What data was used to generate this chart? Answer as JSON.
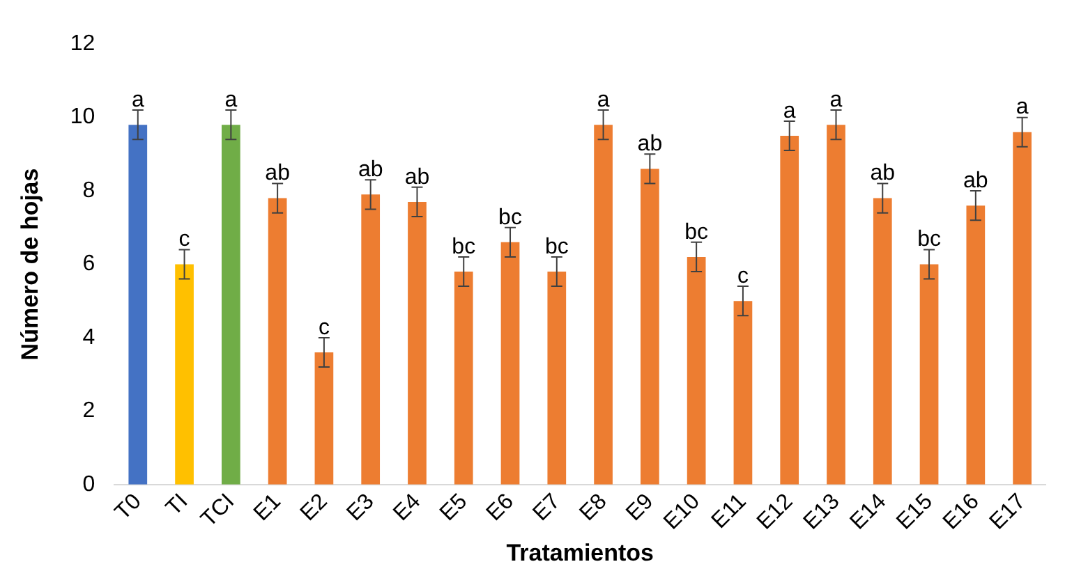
{
  "chart_data": {
    "type": "bar",
    "xlabel": "Tratamientos",
    "ylabel": "Número de hojas",
    "categories": [
      "T0",
      "TI",
      "TCI",
      "E1",
      "E2",
      "E3",
      "E4",
      "E5",
      "E6",
      "E7",
      "E8",
      "E9",
      "E10",
      "E11",
      "E12",
      "E13",
      "E14",
      "E15",
      "E16",
      "E17"
    ],
    "values": [
      9.8,
      6.0,
      9.8,
      7.8,
      3.6,
      7.9,
      7.7,
      5.8,
      6.6,
      5.8,
      9.8,
      8.6,
      6.2,
      5.0,
      9.5,
      9.8,
      7.8,
      6.0,
      7.6,
      9.6
    ],
    "errors": [
      0.4,
      0.4,
      0.4,
      0.4,
      0.4,
      0.4,
      0.4,
      0.4,
      0.4,
      0.4,
      0.4,
      0.4,
      0.4,
      0.4,
      0.4,
      0.4,
      0.4,
      0.4,
      0.4,
      0.4
    ],
    "colors": [
      "#4472c4",
      "#ffc000",
      "#70ad47",
      "#ed7d31",
      "#ed7d31",
      "#ed7d31",
      "#ed7d31",
      "#ed7d31",
      "#ed7d31",
      "#ed7d31",
      "#ed7d31",
      "#ed7d31",
      "#ed7d31",
      "#ed7d31",
      "#ed7d31",
      "#ed7d31",
      "#ed7d31",
      "#ed7d31",
      "#ed7d31",
      "#ed7d31"
    ],
    "ylim": [
      0,
      12
    ],
    "yticks": [
      0,
      2,
      4,
      6,
      8,
      10,
      12
    ],
    "grid": false,
    "legend": false,
    "annotations": [
      {
        "text": "a",
        "x": "T0",
        "y": 10.2
      },
      {
        "text": "c",
        "x": "TI",
        "y": 6.4
      },
      {
        "text": "a",
        "x": "TCI",
        "y": 10.2
      },
      {
        "text": "ab",
        "x": "E1",
        "y": 8.2
      },
      {
        "text": "c",
        "x": "E2",
        "y": 4.0
      },
      {
        "text": "ab",
        "x": "E3",
        "y": 8.3
      },
      {
        "text": "ab",
        "x": "E4",
        "y": 8.1
      },
      {
        "text": "bc",
        "x": "E5",
        "y": 6.2
      },
      {
        "text": "bc",
        "x": "E6",
        "y": 7.0
      },
      {
        "text": "bc",
        "x": "E7",
        "y": 6.2
      },
      {
        "text": "a",
        "x": "E8",
        "y": 10.2
      },
      {
        "text": "ab",
        "x": "E9",
        "y": 9.0
      },
      {
        "text": "bc",
        "x": "E10",
        "y": 6.6
      },
      {
        "text": "c",
        "x": "E11",
        "y": 5.4
      },
      {
        "text": "a",
        "x": "E12",
        "y": 9.9
      },
      {
        "text": "a",
        "x": "E13",
        "y": 10.2
      },
      {
        "text": "ab",
        "x": "E14",
        "y": 8.2
      },
      {
        "text": "bc",
        "x": "E15",
        "y": 6.4
      },
      {
        "text": "ab",
        "x": "E16",
        "y": 8.0
      },
      {
        "text": "a",
        "x": "E17",
        "y": 10.0
      }
    ]
  }
}
